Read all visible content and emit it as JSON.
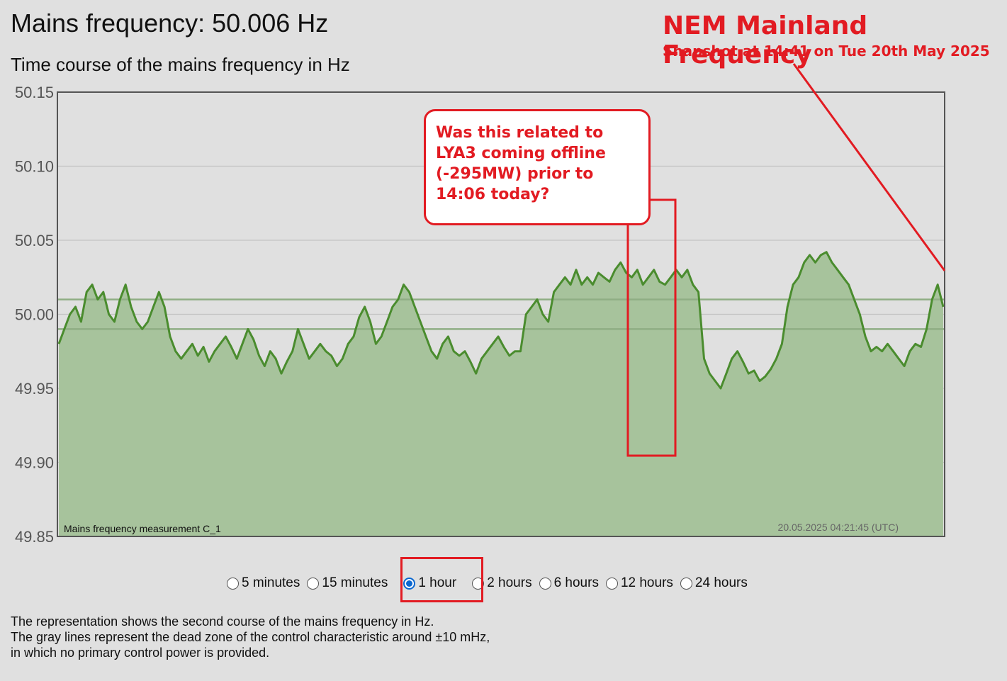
{
  "header": {
    "title": "Mains frequency: 50.006 Hz",
    "chart_heading": "Time course of the mains frequency in Hz"
  },
  "annotation": {
    "title": "NEM Mainland Frequency",
    "subtitle": "Snapshot at 14:41 on Tue 20th May 2025",
    "callout_lines": [
      "Was this related to",
      "LYA3 coming offline",
      "(-295MW) prior to",
      "14:06 today?"
    ],
    "color": "#e21b22"
  },
  "chart_data": {
    "type": "area",
    "y_ticks": [
      "50.15",
      "50.10",
      "50.05",
      "50.00",
      "49.95",
      "49.90",
      "49.85"
    ],
    "ylim": [
      49.85,
      50.15
    ],
    "dead_zone": [
      49.99,
      50.01
    ],
    "series_label": "Mains frequency measurement C_1",
    "timestamp": "20.05.2025 04:21:45 (UTC)",
    "line_color": "#4a8c2e",
    "fill_color": "#a7c39c",
    "series": [
      {
        "values": [
          49.98,
          49.99,
          50.0,
          50.005,
          49.995,
          50.015,
          50.02,
          50.01,
          50.015,
          50.0,
          49.995,
          50.01,
          50.02,
          50.005,
          49.995,
          49.99,
          49.995,
          50.005,
          50.015,
          50.005,
          49.985,
          49.975,
          49.97,
          49.975,
          49.98,
          49.972,
          49.978,
          49.968,
          49.975,
          49.98,
          49.985,
          49.978,
          49.97,
          49.98,
          49.99,
          49.983,
          49.972,
          49.965,
          49.975,
          49.97,
          49.96,
          49.968,
          49.975,
          49.99,
          49.98,
          49.97,
          49.975,
          49.98,
          49.975,
          49.972,
          49.965,
          49.97,
          49.98,
          49.985,
          49.998,
          50.005,
          49.995,
          49.98,
          49.985,
          49.995,
          50.005,
          50.01,
          50.02,
          50.015,
          50.005,
          49.995,
          49.985,
          49.975,
          49.97,
          49.98,
          49.985,
          49.975,
          49.972,
          49.975,
          49.968,
          49.96,
          49.97,
          49.975,
          49.98,
          49.985,
          49.978,
          49.972,
          49.975,
          49.975,
          50.0,
          50.005,
          50.01,
          50.0,
          49.995,
          50.015,
          50.02,
          50.025,
          50.02,
          50.03,
          50.02,
          50.025,
          50.02,
          50.028,
          50.025,
          50.022,
          50.03,
          50.035,
          50.028,
          50.025,
          50.03,
          50.02,
          50.025,
          50.03,
          50.022,
          50.02,
          50.025,
          50.03,
          50.025,
          50.03,
          50.02,
          50.015,
          49.97,
          49.96,
          49.955,
          49.95,
          49.96,
          49.97,
          49.975,
          49.968,
          49.96,
          49.962,
          49.955,
          49.958,
          49.963,
          49.97,
          49.98,
          50.005,
          50.02,
          50.025,
          50.035,
          50.04,
          50.035,
          50.04,
          50.042,
          50.035,
          50.03,
          50.025,
          50.02,
          50.01,
          50.0,
          49.985,
          49.975,
          49.978,
          49.975,
          49.98,
          49.975,
          49.97,
          49.965,
          49.975,
          49.98,
          49.978,
          49.99,
          50.01,
          50.02,
          50.005
        ]
      }
    ]
  },
  "controls": {
    "range_options": [
      "5 minutes",
      "15 minutes",
      "1 hour",
      "2 hours",
      "6 hours",
      "12 hours",
      "24 hours"
    ],
    "selected_index": 2
  },
  "description": [
    "The representation shows the second course of the mains frequency in Hz.",
    "The gray lines represent the dead zone of the control characteristic around ±10 mHz,",
    "in which no primary control power is provided."
  ]
}
